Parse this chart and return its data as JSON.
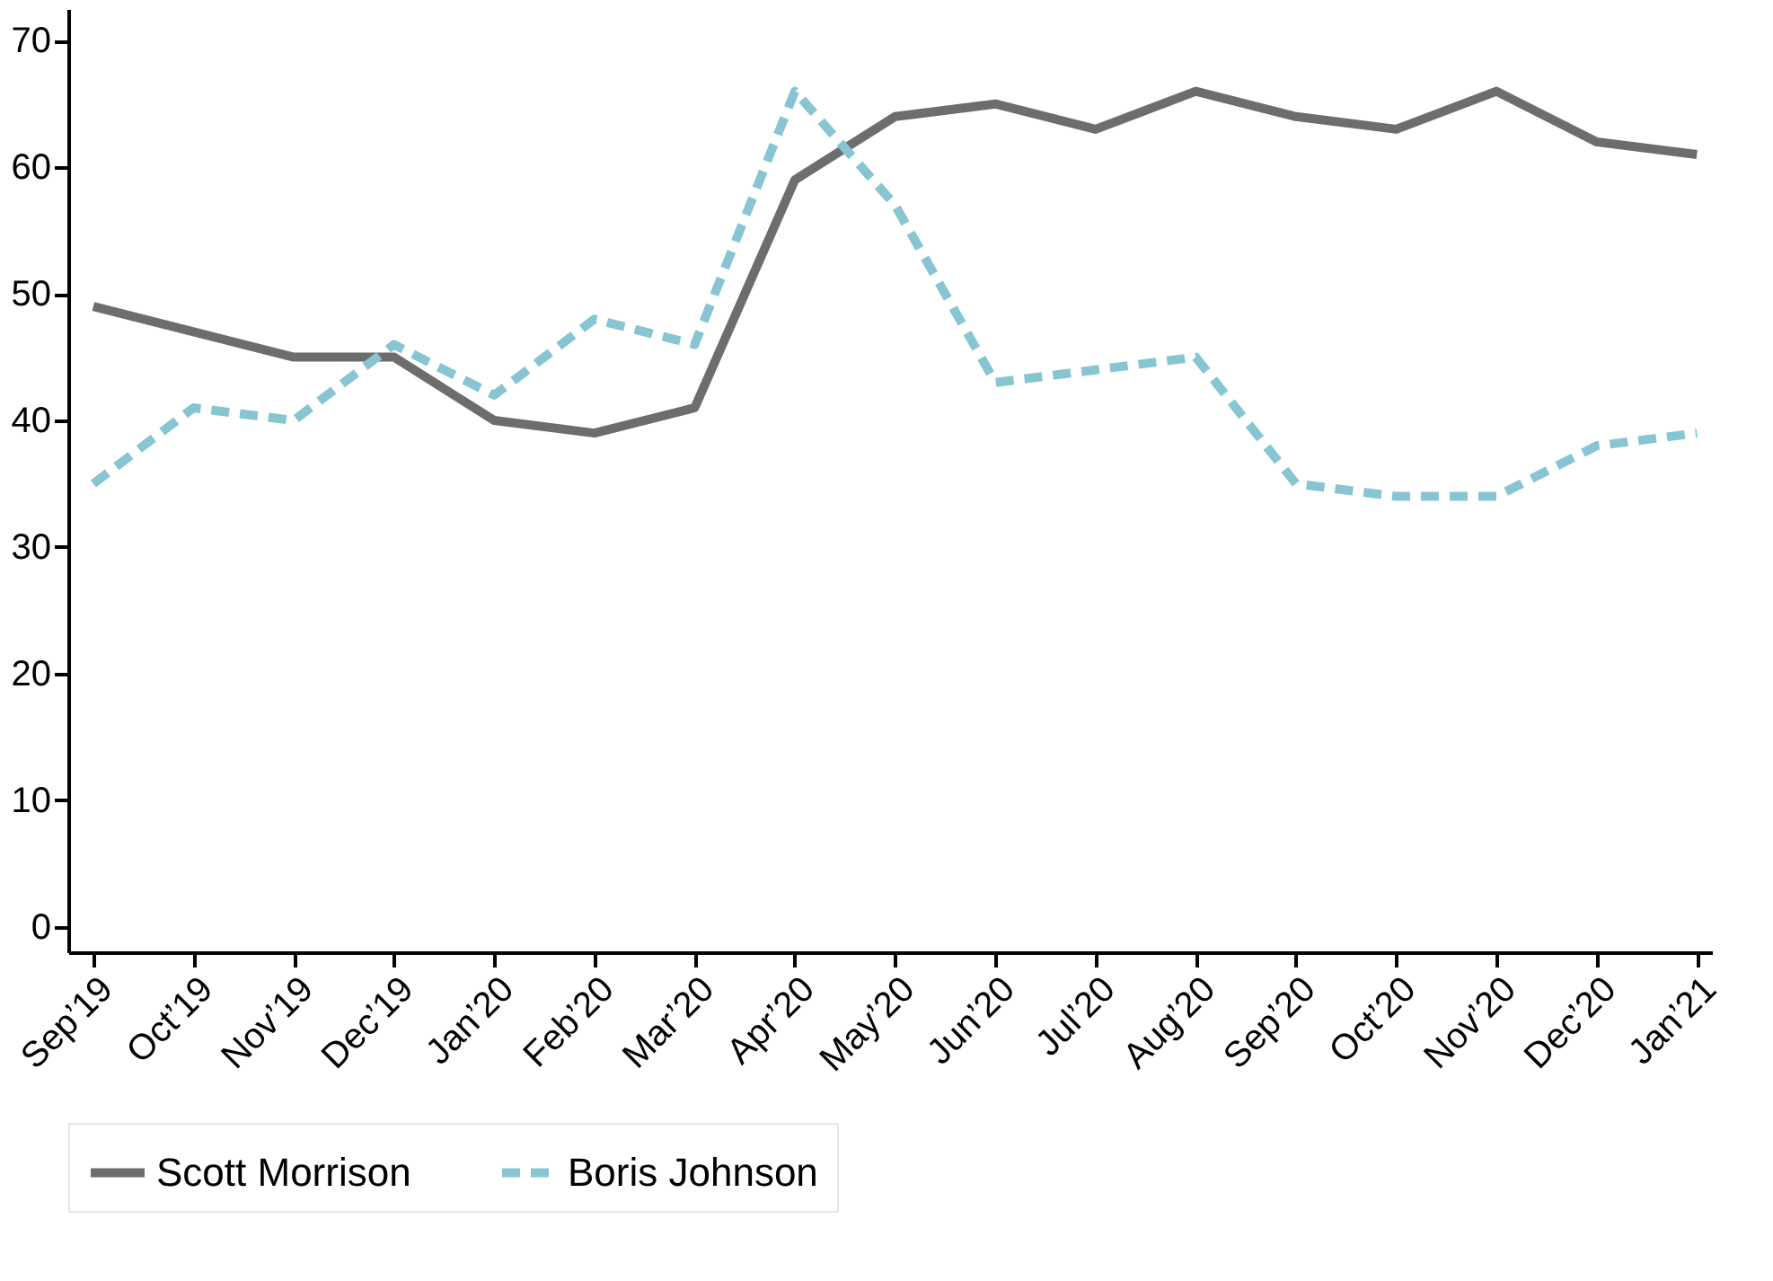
{
  "chart_data": {
    "type": "line",
    "categories": [
      "Sep’19",
      "Oct’19",
      "Nov’19",
      "Dec’19",
      "Jan’20",
      "Feb’20",
      "Mar’20",
      "Apr’20",
      "May’20",
      "Jun’20",
      "Jul’20",
      "Aug’20",
      "Sep’20",
      "Oct’20",
      "Nov’20",
      "Dec’20",
      "Jan’21"
    ],
    "series": [
      {
        "name": "Scott Morrison",
        "color": "#6d6d6d",
        "line_style": "solid",
        "values": [
          49,
          47,
          45,
          45,
          40,
          39,
          41,
          59,
          64,
          65,
          63,
          66,
          64,
          63,
          66,
          62,
          61
        ]
      },
      {
        "name": "Boris Johnson",
        "color": "#86c5d1",
        "line_style": "dashed",
        "values": [
          35,
          41,
          40,
          46,
          42,
          48,
          46,
          66,
          57,
          43,
          44,
          45,
          35,
          34,
          34,
          38,
          39
        ]
      }
    ],
    "ylim": [
      -2,
      72.5
    ],
    "yticks": [
      0,
      10,
      20,
      30,
      40,
      50,
      60,
      70
    ],
    "grid": false,
    "legend": "bottom",
    "marker": "none"
  }
}
